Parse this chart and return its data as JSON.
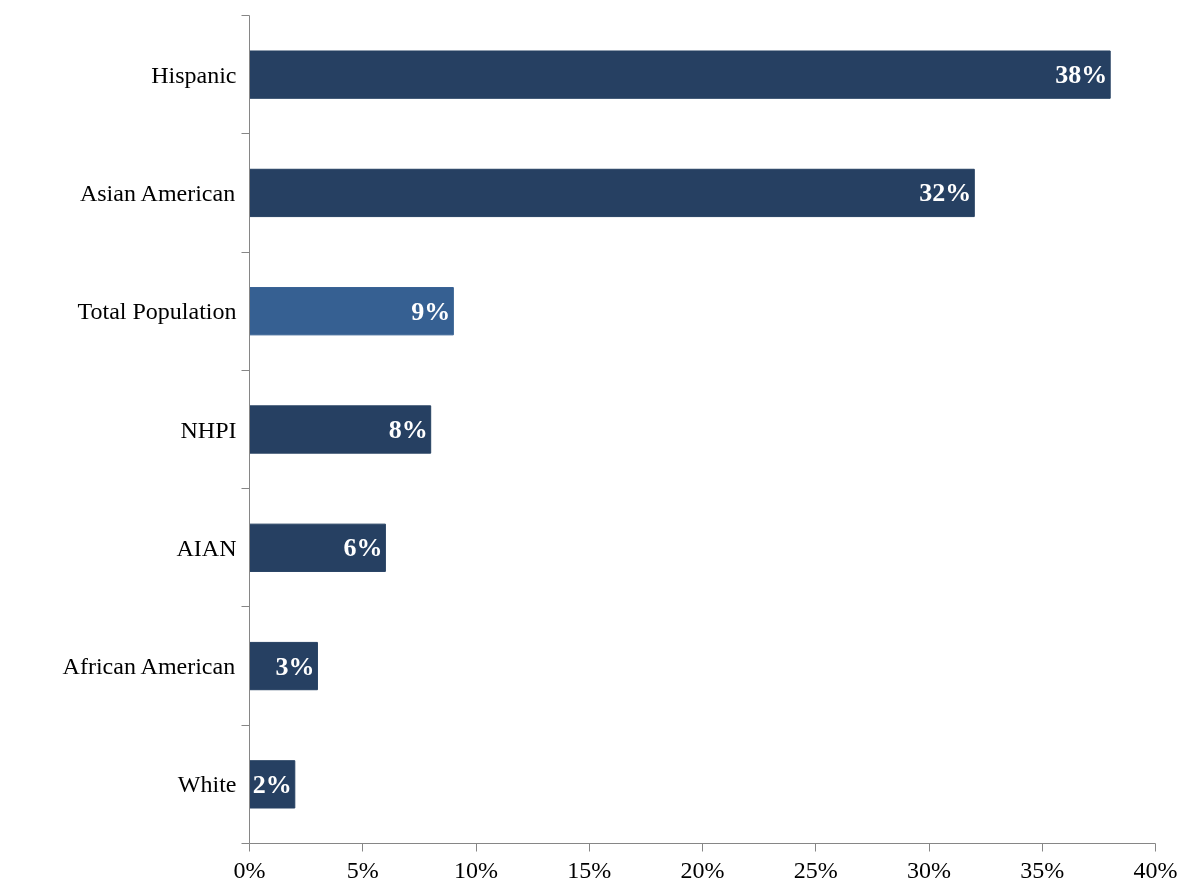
{
  "chart_data": {
    "type": "bar",
    "orientation": "horizontal",
    "categories": [
      "Hispanic",
      "Asian American",
      "Total Population",
      "NHPI",
      "AIAN",
      "African American",
      "White"
    ],
    "values": [
      38,
      32,
      9,
      8,
      6,
      3,
      2
    ],
    "colors": [
      "#264062",
      "#264062",
      "#366092",
      "#264062",
      "#264062",
      "#264062",
      "#264062"
    ],
    "value_labels": [
      "38%",
      "32%",
      "9%",
      "8%",
      "6%",
      "3%",
      "2%"
    ],
    "xlim": [
      0,
      40
    ],
    "xticks": [
      {
        "value": 0,
        "label": "0%"
      },
      {
        "value": 5,
        "label": "5%"
      },
      {
        "value": 10,
        "label": "10%"
      },
      {
        "value": 15,
        "label": "15%"
      },
      {
        "value": 20,
        "label": "20%"
      },
      {
        "value": 25,
        "label": "25%"
      },
      {
        "value": 30,
        "label": "30%"
      },
      {
        "value": 35,
        "label": "35%"
      },
      {
        "value": 40,
        "label": "40%"
      }
    ],
    "grid": false
  }
}
